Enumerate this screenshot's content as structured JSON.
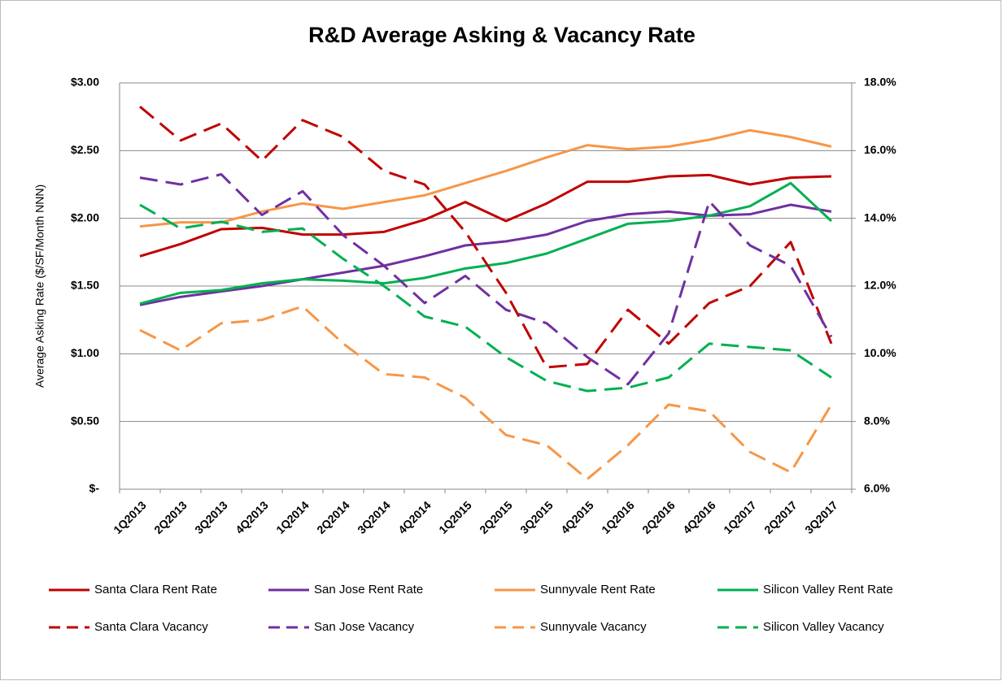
{
  "chart_data": {
    "type": "line",
    "title": "R&D Average Asking & Vacancy Rate",
    "y_label": "Average Asking Rate ($/SF/Month NNN)",
    "categories": [
      "1Q2013",
      "2Q2013",
      "3Q2013",
      "4Q2013",
      "1Q2014",
      "2Q2014",
      "3Q2014",
      "4Q2014",
      "1Q2015",
      "2Q2015",
      "3Q2015",
      "4Q2015",
      "1Q2016",
      "2Q2016",
      "4Q2016",
      "1Q2017",
      "2Q2017",
      "3Q2017"
    ],
    "ylim": [
      0,
      3
    ],
    "yticks": [
      {
        "value": 0,
        "label": "$-"
      },
      {
        "value": 0.5,
        "label": "$0.50"
      },
      {
        "value": 1,
        "label": "$1.00"
      },
      {
        "value": 1.5,
        "label": "$1.50"
      },
      {
        "value": 2,
        "label": "$2.00"
      },
      {
        "value": 2.5,
        "label": "$2.50"
      },
      {
        "value": 3,
        "label": "$3.00"
      }
    ],
    "y2lim": [
      6,
      18
    ],
    "y2ticks": [
      {
        "value": 6,
        "label": "6.0%"
      },
      {
        "value": 8,
        "label": "8.0%"
      },
      {
        "value": 10,
        "label": "10.0%"
      },
      {
        "value": 12,
        "label": "12.0%"
      },
      {
        "value": 14,
        "label": "14.0%"
      },
      {
        "value": 16,
        "label": "16.0%"
      },
      {
        "value": 18,
        "label": "18.0%"
      }
    ],
    "grid": true,
    "legend": "bottom",
    "series": [
      {
        "name": "Santa Clara Rent Rate",
        "color": "#c00000",
        "dashed": false,
        "values": [
          1.72,
          1.81,
          1.92,
          1.93,
          1.88,
          1.88,
          1.9,
          1.99,
          2.12,
          1.98,
          2.11,
          2.27,
          2.27,
          2.31,
          2.32,
          2.25,
          2.3,
          2.31
        ]
      },
      {
        "name": "San Jose Rent Rate",
        "color": "#7030a0",
        "dashed": false,
        "values": [
          1.36,
          1.42,
          1.46,
          1.5,
          1.55,
          1.6,
          1.65,
          1.72,
          1.8,
          1.83,
          1.88,
          1.98,
          2.03,
          2.05,
          2.02,
          2.03,
          2.1,
          2.05
        ]
      },
      {
        "name": "Sunnyvale Rent Rate",
        "color": "#f79646",
        "dashed": false,
        "values": [
          1.94,
          1.97,
          1.97,
          2.05,
          2.11,
          2.07,
          2.12,
          2.17,
          2.26,
          2.35,
          2.45,
          2.54,
          2.51,
          2.53,
          2.58,
          2.65,
          2.6,
          2.53
        ]
      },
      {
        "name": "Silicon Valley Rent Rate",
        "color": "#00b050",
        "dashed": false,
        "values": [
          1.37,
          1.45,
          1.47,
          1.52,
          1.55,
          1.54,
          1.52,
          1.56,
          1.63,
          1.67,
          1.74,
          1.85,
          1.96,
          1.98,
          2.02,
          2.09,
          2.26,
          1.98
        ]
      },
      {
        "name": "Santa Clara Vacancy",
        "color": "#c00000",
        "dashed": true,
        "axis": "y2",
        "values": [
          17.3,
          16.3,
          16.8,
          15.7,
          16.9,
          16.4,
          15.4,
          15.0,
          13.6,
          11.8,
          9.6,
          9.7,
          11.3,
          10.3,
          11.5,
          12.0,
          13.3,
          10.3
        ]
      },
      {
        "name": "San Jose Vacancy",
        "color": "#7030a0",
        "dashed": true,
        "axis": "y2",
        "values": [
          15.2,
          15.0,
          15.3,
          14.1,
          14.8,
          13.5,
          12.6,
          11.5,
          12.3,
          11.3,
          10.9,
          9.9,
          9.1,
          10.6,
          14.5,
          13.2,
          12.6,
          10.5
        ]
      },
      {
        "name": "Sunnyvale Vacancy",
        "color": "#f79646",
        "dashed": true,
        "axis": "y2",
        "values": [
          10.7,
          10.1,
          10.9,
          11.0,
          11.4,
          10.3,
          9.4,
          9.3,
          8.7,
          7.6,
          7.3,
          6.3,
          7.3,
          8.5,
          8.3,
          7.1,
          6.5,
          8.5
        ]
      },
      {
        "name": "Silicon Valley Vacancy",
        "color": "#00b050",
        "dashed": true,
        "axis": "y2",
        "values": [
          14.4,
          13.7,
          13.9,
          13.6,
          13.7,
          12.8,
          12.0,
          11.1,
          10.8,
          9.9,
          9.2,
          8.9,
          9.0,
          9.3,
          10.3,
          10.2,
          10.1,
          9.3
        ]
      }
    ]
  }
}
